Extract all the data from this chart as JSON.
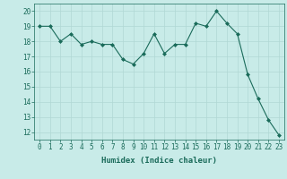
{
  "x": [
    0,
    1,
    2,
    3,
    4,
    5,
    6,
    7,
    8,
    9,
    10,
    11,
    12,
    13,
    14,
    15,
    16,
    17,
    18,
    19,
    20,
    21,
    22,
    23
  ],
  "y": [
    19.0,
    19.0,
    18.0,
    18.5,
    17.8,
    18.0,
    17.8,
    17.8,
    16.8,
    16.5,
    17.2,
    18.5,
    17.2,
    17.8,
    17.8,
    19.2,
    19.0,
    20.0,
    19.2,
    18.5,
    15.8,
    14.2,
    12.8,
    11.8
  ],
  "line_color": "#1a6b5a",
  "marker": "D",
  "marker_size": 2,
  "bg_color": "#c8ebe8",
  "grid_color": "#b0d8d4",
  "xlabel": "Humidex (Indice chaleur)",
  "ylim": [
    11.5,
    20.5
  ],
  "xlim": [
    -0.5,
    23.5
  ],
  "yticks": [
    12,
    13,
    14,
    15,
    16,
    17,
    18,
    19,
    20
  ],
  "xticks": [
    0,
    1,
    2,
    3,
    4,
    5,
    6,
    7,
    8,
    9,
    10,
    11,
    12,
    13,
    14,
    15,
    16,
    17,
    18,
    19,
    20,
    21,
    22,
    23
  ],
  "tick_color": "#1a6b5a",
  "label_fontsize": 6.5,
  "tick_fontsize": 5.5
}
